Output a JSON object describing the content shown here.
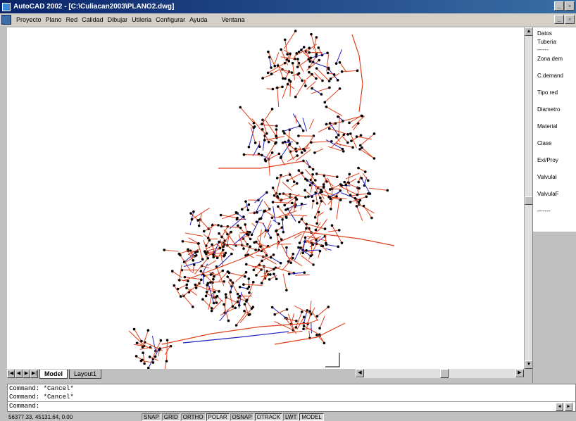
{
  "window": {
    "title": "AutoCAD 2002 - [C:\\Culiacan2003\\PLANO2.dwg]"
  },
  "menu": [
    "Proyecto",
    "Plano",
    "Red",
    "Calidad",
    "Dibujar",
    "Utileria",
    "Configurar",
    "Ayuda",
    "Ventana"
  ],
  "right_panel": {
    "header": "Datos",
    "header2": "Tuberia",
    "items": [
      "------",
      "Zona dem",
      "C.demand",
      "Tipo red",
      "Diametro",
      "Material",
      "Clase",
      "Exi/Proy",
      "ValvulaI",
      "ValvulaF",
      "-------"
    ]
  },
  "tabs": {
    "model": "Model",
    "layout1": "Layout1"
  },
  "command": {
    "line1": "Command: *Cancel*",
    "line2": "Command: *Cancel*",
    "prompt": "Command:"
  },
  "status": {
    "coords": "56377.33, 45131.64, 0.00",
    "buttons": [
      "SNAP",
      "GRID",
      "ORTHO",
      "POLAR",
      "OSNAP",
      "OTRACK",
      "LWT",
      "MODEL"
    ]
  },
  "colors": {
    "pipe_main": "#e0401c",
    "pipe_secondary": "#2020c0",
    "node": "#000000"
  }
}
